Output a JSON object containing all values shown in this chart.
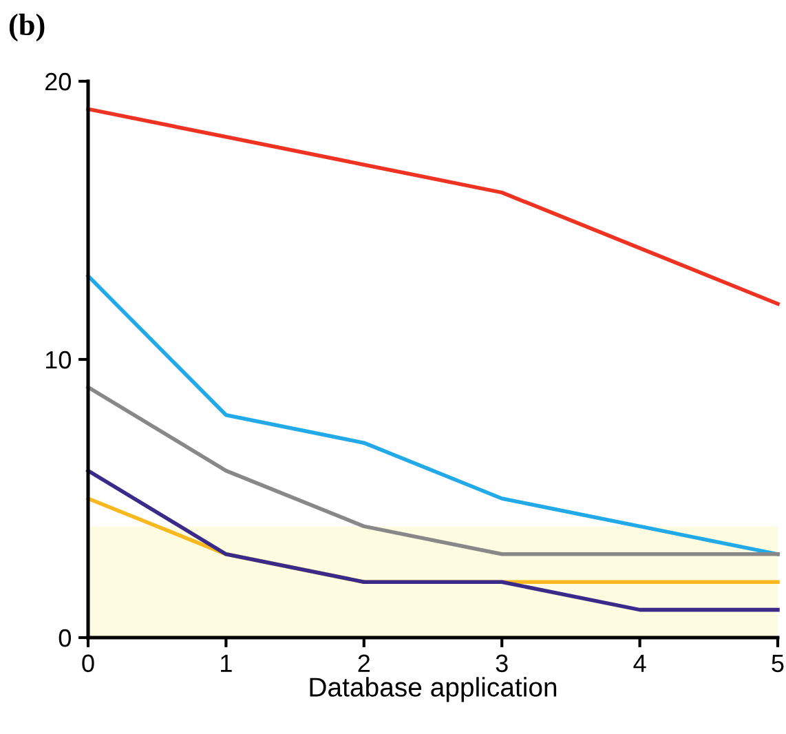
{
  "chart_data": {
    "type": "line",
    "title": "(b)",
    "xlabel": "Database application",
    "x": [
      0,
      1,
      2,
      3,
      4,
      5
    ],
    "xlim": [
      0,
      5
    ],
    "xticks": [
      0,
      1,
      2,
      3,
      4,
      5
    ],
    "ylim": [
      0,
      20
    ],
    "yticks": [
      0,
      10,
      20
    ],
    "grid": false,
    "legend": false,
    "marker": "none",
    "line_style": "solid",
    "bands": [
      {
        "axis": "y",
        "from": 0,
        "to": 4,
        "color": "#fdfbe0"
      }
    ],
    "series": [
      {
        "color": "#ee3322",
        "values": [
          19,
          18,
          17,
          16,
          14,
          12
        ]
      },
      {
        "color": "#22aae8",
        "values": [
          13,
          8,
          7,
          5,
          4,
          3
        ]
      },
      {
        "color": "#888888",
        "values": [
          9,
          6,
          4,
          3,
          3,
          3
        ]
      },
      {
        "color": "#f8b820",
        "values": [
          5,
          3,
          2,
          2,
          2,
          2
        ]
      },
      {
        "color": "#3a2a8a",
        "values": [
          6,
          3,
          2,
          2,
          1,
          1
        ]
      }
    ]
  }
}
